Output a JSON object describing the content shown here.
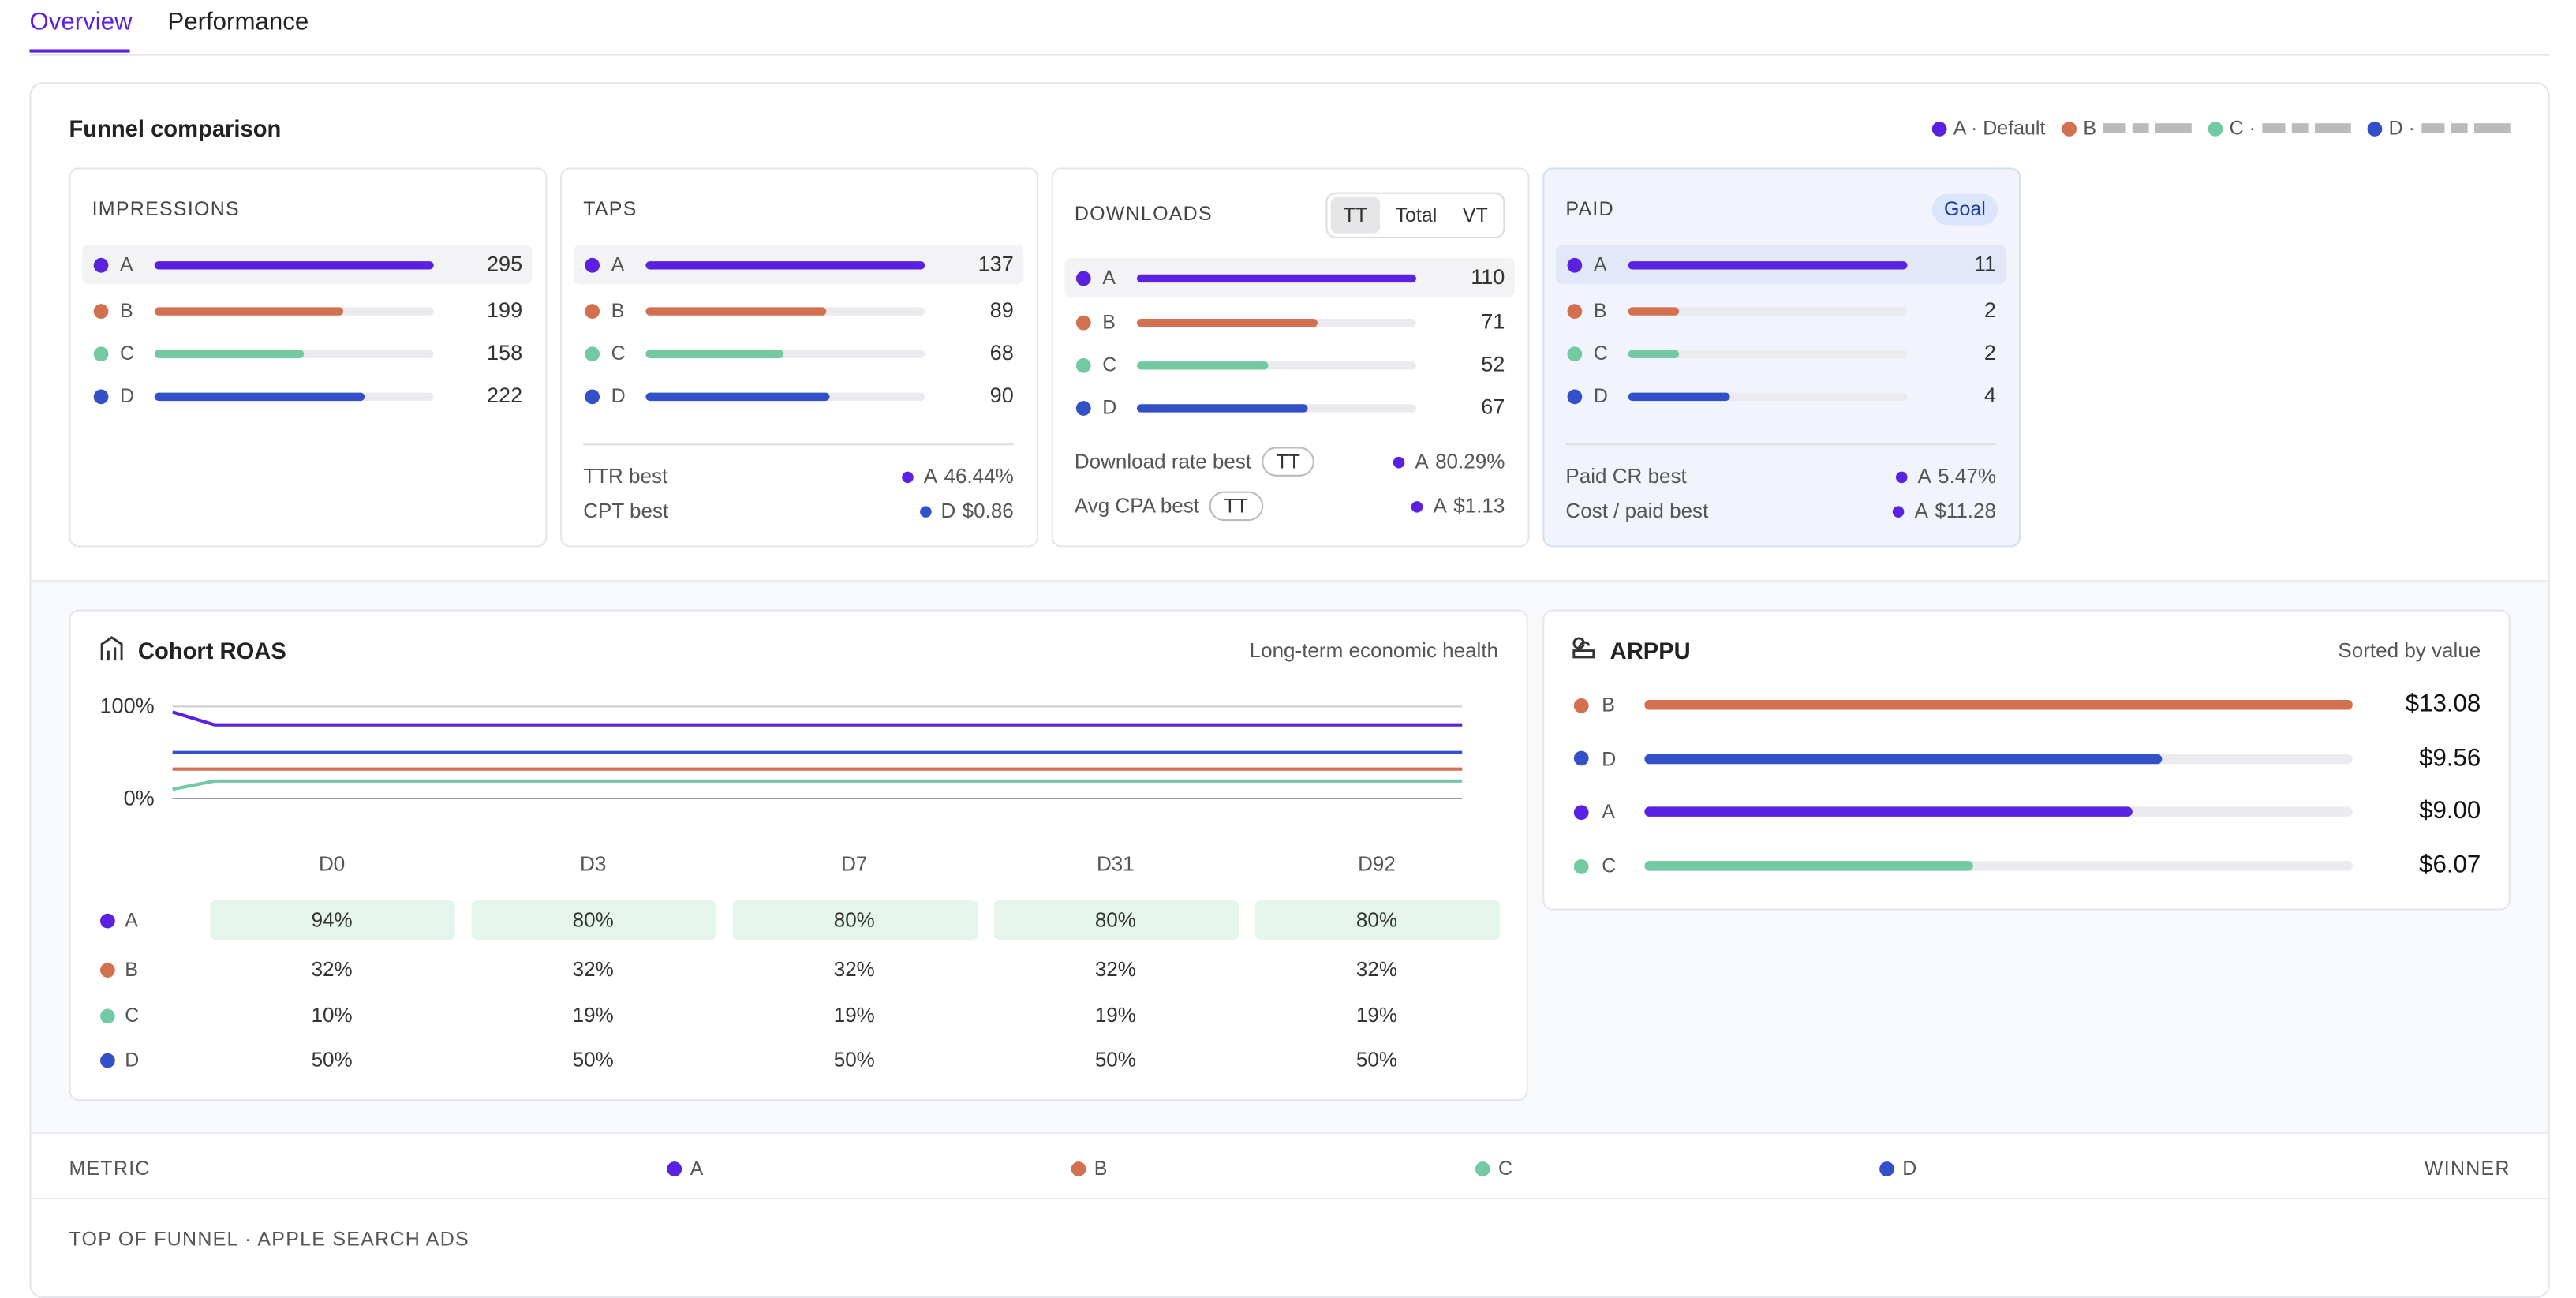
{
  "tabs": [
    "Overview",
    "Performance"
  ],
  "funnel": {
    "title": "Funnel comparison",
    "variants": [
      {
        "name": "A",
        "label": "A · Default",
        "color": "#5a22e0"
      },
      {
        "name": "B",
        "label": "B",
        "color": "#d2704f"
      },
      {
        "name": "C",
        "label": "C ·",
        "color": "#72c9a2"
      },
      {
        "name": "D",
        "label": "D ·",
        "color": "#3450c8"
      }
    ],
    "cards": [
      {
        "title": "IMPRESSIONS",
        "values": [
          295,
          199,
          158,
          222
        ]
      },
      {
        "title": "TAPS",
        "values": [
          137,
          89,
          68,
          90
        ],
        "stats": [
          {
            "label": "TTR best",
            "winner": "A",
            "value": "46.44%"
          },
          {
            "label": "CPT best",
            "winner": "D",
            "value": "$0.86"
          }
        ]
      },
      {
        "title": "DOWNLOADS",
        "toggle": [
          "TT",
          "Total",
          "VT"
        ],
        "values": [
          110,
          71,
          52,
          67
        ],
        "stats": [
          {
            "label": "Download rate best",
            "tag": "TT",
            "winner": "A",
            "value": "80.29%"
          },
          {
            "label": "Avg CPA best",
            "tag": "TT",
            "winner": "A",
            "value": "$1.13"
          }
        ]
      },
      {
        "title": "PAID",
        "badge": "Goal",
        "values": [
          11,
          2,
          2,
          4
        ],
        "stats": [
          {
            "label": "Paid CR best",
            "winner": "A",
            "value": "5.47%"
          },
          {
            "label": "Cost / paid best",
            "winner": "A",
            "value": "$11.28"
          }
        ]
      }
    ]
  },
  "cohort": {
    "type": "line",
    "title": "Cohort ROAS",
    "subtitle": "Long-term economic health",
    "columns": [
      "D0",
      "D3",
      "D7",
      "D31",
      "D92"
    ],
    "x": [
      0,
      3,
      7,
      31,
      92
    ],
    "xlim": [
      0,
      92
    ],
    "ylim": [
      0,
      100
    ],
    "yticks": [
      {
        "value": 100,
        "label": "100%"
      },
      {
        "value": 0,
        "label": "0%"
      }
    ],
    "series": [
      {
        "name": "A",
        "values": [
          94,
          80,
          80,
          80,
          80
        ],
        "value_labels": [
          "94%",
          "80%",
          "80%",
          "80%",
          "80%"
        ]
      },
      {
        "name": "B",
        "values": [
          32,
          32,
          32,
          32,
          32
        ],
        "value_labels": [
          "32%",
          "32%",
          "32%",
          "32%",
          "32%"
        ]
      },
      {
        "name": "C",
        "values": [
          10,
          19,
          19,
          19,
          19
        ],
        "value_labels": [
          "10%",
          "19%",
          "19%",
          "19%",
          "19%"
        ]
      },
      {
        "name": "D",
        "values": [
          50,
          50,
          50,
          50,
          50
        ],
        "value_labels": [
          "50%",
          "50%",
          "50%",
          "50%",
          "50%"
        ]
      }
    ]
  },
  "arppu": {
    "type": "bar",
    "title": "ARPPU",
    "subtitle": "Sorted by value",
    "categories": [
      "B",
      "D",
      "A",
      "C"
    ],
    "values": [
      13.08,
      9.56,
      9.0,
      6.07
    ],
    "value_labels": [
      "$13.08",
      "$9.56",
      "$9.00",
      "$6.07"
    ]
  },
  "table": {
    "headers": [
      "METRIC",
      "A",
      "B",
      "C",
      "D",
      "WINNER"
    ],
    "section": "TOP OF FUNNEL · APPLE SEARCH ADS"
  }
}
